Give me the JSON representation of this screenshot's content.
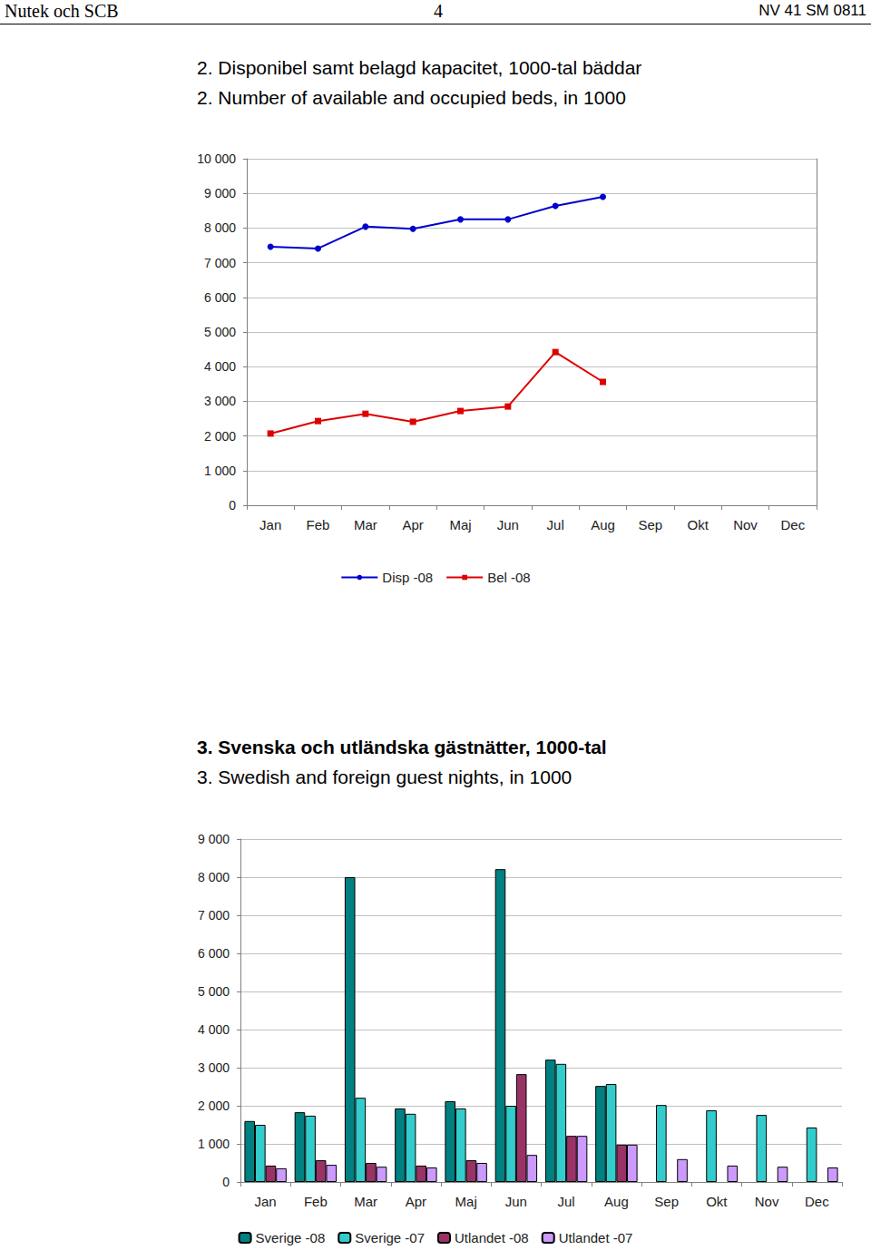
{
  "header": {
    "left": "Nutek och SCB",
    "center": "4",
    "right": "NV 41 SM 0811"
  },
  "chart_data": [
    {
      "type": "line",
      "title": "2. Disponibel samt belagd kapacitet, 1000-tal bäddar",
      "subtitle": "2. Number of available and occupied beds, in 1000",
      "categories": [
        "Jan",
        "Feb",
        "Mar",
        "Apr",
        "Maj",
        "Jun",
        "Jul",
        "Aug",
        "Sep",
        "Okt",
        "Nov",
        "Dec"
      ],
      "series": [
        {
          "name": "Disp -08",
          "color": "#0000cc",
          "marker": "circle",
          "values": [
            7460,
            7410,
            8040,
            7980,
            8250,
            8250,
            8640,
            8900,
            null,
            null,
            null,
            null
          ]
        },
        {
          "name": "Bel -08",
          "color": "#dd0000",
          "marker": "square",
          "values": [
            2070,
            2430,
            2640,
            2410,
            2720,
            2850,
            4420,
            3560,
            null,
            null,
            null,
            null
          ]
        }
      ],
      "ylim": [
        0,
        10000
      ],
      "yticks": [
        0,
        {
          "value": 1000,
          "label": "1 000"
        },
        {
          "value": 2000,
          "label": "2 000"
        },
        {
          "value": 3000,
          "label": "3 000"
        },
        {
          "value": 4000,
          "label": "4 000"
        },
        {
          "value": 5000,
          "label": "5 000"
        },
        {
          "value": 6000,
          "label": "6 000"
        },
        {
          "value": 7000,
          "label": "7 000"
        },
        {
          "value": 8000,
          "label": "8 000"
        },
        {
          "value": 9000,
          "label": "9 000"
        },
        {
          "value": 10000,
          "label": "10 000"
        }
      ],
      "grid": true,
      "legend": "bottom"
    },
    {
      "type": "bar",
      "title": "3. Svenska och utländska gästnätter, 1000-tal",
      "subtitle": "3. Swedish and foreign guest nights, in 1000",
      "categories": [
        "Jan",
        "Feb",
        "Mar",
        "Apr",
        "Maj",
        "Jun",
        "Jul",
        "Aug",
        "Sep",
        "Okt",
        "Nov",
        "Dec"
      ],
      "series": [
        {
          "name": "Sverige -08",
          "color": "#008080",
          "values": [
            1600,
            1830,
            8000,
            1930,
            2120,
            8210,
            3210,
            2520,
            null,
            null,
            null,
            null
          ]
        },
        {
          "name": "Sverige -07",
          "color": "#33cccc",
          "values": [
            1500,
            1740,
            2210,
            1790,
            1930,
            2000,
            3100,
            2570,
            2020,
            1880,
            1760,
            1430
          ]
        },
        {
          "name": "Utlandet -08",
          "color": "#993366",
          "values": [
            430,
            570,
            500,
            430,
            570,
            2830,
            1210,
            980,
            null,
            null,
            null,
            null
          ]
        },
        {
          "name": "Utlandet -07",
          "color": "#cc99ff",
          "values": [
            360,
            450,
            400,
            380,
            500,
            710,
            1210,
            980,
            600,
            430,
            400,
            380
          ]
        }
      ],
      "ylim": [
        0,
        9000
      ],
      "yticks": [
        0,
        {
          "value": 1000,
          "label": "1 000"
        },
        {
          "value": 2000,
          "label": "2 000"
        },
        {
          "value": 3000,
          "label": "3 000"
        },
        {
          "value": 4000,
          "label": "4 000"
        },
        {
          "value": 5000,
          "label": "5 000"
        },
        {
          "value": 6000,
          "label": "6 000"
        },
        {
          "value": 7000,
          "label": "7 000"
        },
        {
          "value": 8000,
          "label": "8 000"
        },
        {
          "value": 9000,
          "label": "9 000"
        }
      ],
      "grid": true,
      "legend": "bottom"
    }
  ]
}
